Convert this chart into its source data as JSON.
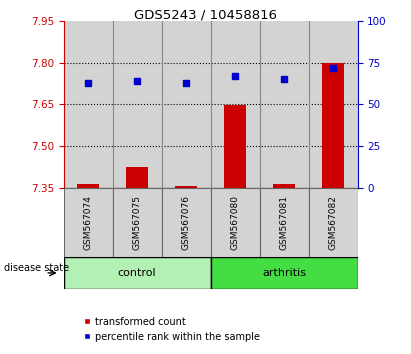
{
  "title": "GDS5243 / 10458816",
  "samples": [
    "GSM567074",
    "GSM567075",
    "GSM567076",
    "GSM567080",
    "GSM567081",
    "GSM567082"
  ],
  "groups": [
    "control",
    "control",
    "control",
    "arthritis",
    "arthritis",
    "arthritis"
  ],
  "transformed_count": [
    7.362,
    7.425,
    7.357,
    7.648,
    7.362,
    7.8
  ],
  "percentile_rank": [
    63,
    64,
    63,
    67,
    65,
    72
  ],
  "ylim_left": [
    7.35,
    7.95
  ],
  "yticks_left": [
    7.35,
    7.5,
    7.65,
    7.8,
    7.95
  ],
  "ylim_right": [
    0,
    100
  ],
  "yticks_right": [
    0,
    25,
    50,
    75,
    100
  ],
  "bar_color": "#cc0000",
  "dot_color": "#0000cc",
  "bar_bottom": 7.35,
  "control_color": "#b3f0b3",
  "arthritis_color": "#44dd44",
  "col_bg_color": "#d3d3d3",
  "legend_items": [
    {
      "color": "#cc0000",
      "label": "transformed count"
    },
    {
      "color": "#0000cc",
      "label": "percentile rank within the sample"
    }
  ]
}
